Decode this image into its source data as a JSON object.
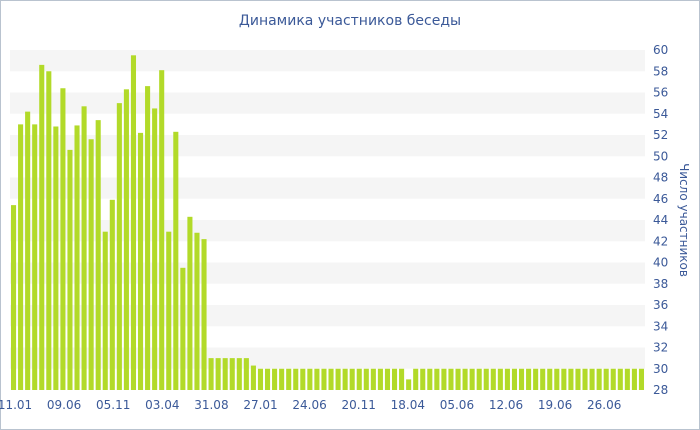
{
  "chart_data": {
    "type": "bar",
    "title": "Динамика участников беседы",
    "xlabel": "",
    "ylabel": "Число участников",
    "ylim": [
      28,
      60
    ],
    "ytick_step": 2,
    "y_axis_side": "right",
    "grid": "alternating horizontal bands",
    "legend": "none",
    "bar_color": "#b2da29",
    "xtick_labels": [
      "11.01",
      "09.06",
      "05.11",
      "03.04",
      "31.08",
      "27.01",
      "24.06",
      "20.11",
      "18.04",
      "05.06",
      "12.06",
      "19.06",
      "26.06"
    ],
    "values": [
      45.4,
      53.0,
      54.2,
      53.0,
      58.6,
      58.0,
      52.8,
      56.4,
      50.6,
      52.9,
      54.7,
      51.6,
      53.4,
      42.9,
      45.9,
      55.0,
      56.3,
      59.5,
      52.2,
      56.6,
      54.5,
      58.1,
      42.9,
      52.3,
      39.5,
      44.3,
      42.8,
      42.2,
      31.0,
      31.0,
      31.0,
      31.0,
      31.0,
      31.0,
      30.3,
      30.0,
      30.0,
      30.0,
      30.0,
      30.0,
      30.0,
      30.0,
      30.0,
      30.0,
      30.0,
      30.0,
      30.0,
      30.0,
      30.0,
      30.0,
      30.0,
      30.0,
      30.0,
      30.0,
      30.0,
      30.0,
      29.0,
      30.0,
      30.0,
      30.0,
      30.0,
      30.0,
      30.0,
      30.0,
      30.0,
      30.0,
      30.0,
      30.0,
      30.0,
      30.0,
      30.0,
      30.0,
      30.0,
      30.0,
      30.0,
      30.0,
      30.0,
      30.0,
      30.0,
      30.0,
      30.0,
      30.0,
      30.0,
      30.0,
      30.0,
      30.0,
      30.0,
      30.0,
      30.0,
      30.0
    ]
  }
}
